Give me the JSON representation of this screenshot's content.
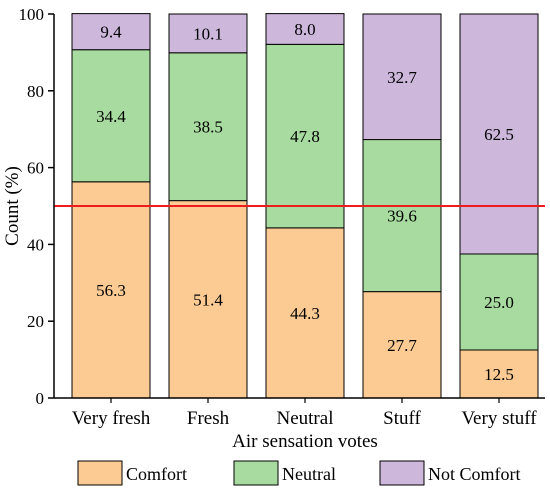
{
  "chart_data": {
    "type": "bar",
    "stacked": true,
    "title": "",
    "xlabel": "Air sensation votes",
    "ylabel": "Count (%)",
    "ylim": [
      0,
      100
    ],
    "yticks": [
      0,
      20,
      40,
      60,
      80,
      100
    ],
    "categories": [
      "Very fresh",
      "Fresh",
      "Neutral",
      "Stuff",
      "Very stuff"
    ],
    "series": [
      {
        "name": "Comfort",
        "color": "#fccb94",
        "values": [
          56.3,
          51.4,
          44.3,
          27.7,
          12.5
        ]
      },
      {
        "name": "Neutral",
        "color": "#a8dba0",
        "values": [
          34.4,
          38.5,
          47.8,
          39.6,
          25.0
        ]
      },
      {
        "name": "Not Comfort",
        "color": "#cdb8dc",
        "values": [
          9.4,
          10.1,
          8.0,
          32.7,
          62.5
        ]
      }
    ],
    "data_labels": [
      [
        "56.3",
        "51.4",
        "44.3",
        "27.7",
        "12.5"
      ],
      [
        "34.4",
        "38.5",
        "47.8",
        "39.6",
        "25.0"
      ],
      [
        "9.4",
        "10.1",
        "8.0",
        "32.7",
        "62.5"
      ]
    ],
    "reference_line": {
      "y": 50,
      "color": "#ee1c1c"
    },
    "legend": {
      "placement": "bottom"
    },
    "grid": false
  }
}
